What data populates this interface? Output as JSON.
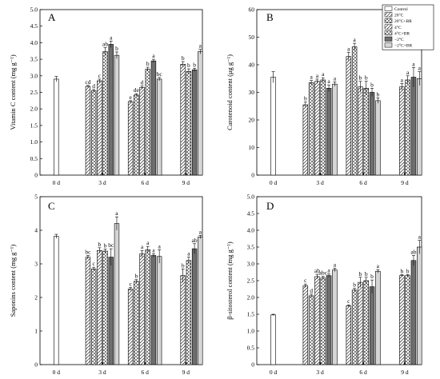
{
  "colors": {
    "dark": "#6e6e6e",
    "light": "#d6d6d6",
    "white": "#ffffff"
  },
  "legend": {
    "entries": [
      {
        "label": "Control",
        "pattern": "white"
      },
      {
        "label": "20°C",
        "pattern": "diag"
      },
      {
        "label": "20°C+BR",
        "pattern": "cross"
      },
      {
        "label": "4°C",
        "pattern": "diag"
      },
      {
        "label": "4°C+BR",
        "pattern": "cross"
      },
      {
        "label": "−2°C",
        "pattern": "dark"
      },
      {
        "label": "−2°C+BR",
        "pattern": "light"
      }
    ]
  },
  "chart_data": [
    {
      "type": "bar",
      "panel": "A",
      "ylabel": "Vitamin C content (mg g⁻¹)",
      "ylim": [
        0,
        5.0
      ],
      "yticks": [
        "0",
        "0.5",
        "1.0",
        "1.5",
        "2.0",
        "2.5",
        "3.0",
        "3.5",
        "4.0",
        "4.5",
        "5.0"
      ],
      "tickvals": [
        0,
        0.5,
        1.0,
        1.5,
        2.0,
        2.5,
        3.0,
        3.5,
        4.0,
        4.5,
        5.0
      ],
      "categories": [
        "0 d",
        "3 d",
        "6 d",
        "9 d"
      ],
      "control": {
        "value": 2.9,
        "err": 0.08
      },
      "groups": [
        {
          "cat": "3 d",
          "start": 1,
          "bars": [
            {
              "v": 2.68,
              "e": 0.03,
              "s": "cd"
            },
            {
              "v": 2.55,
              "e": 0.04,
              "s": "d"
            },
            {
              "v": 2.85,
              "e": 0.05,
              "s": "c"
            },
            {
              "v": 3.73,
              "e": 0.12,
              "s": "ab"
            },
            {
              "v": 3.95,
              "e": 0.1,
              "s": "a"
            },
            {
              "v": 3.62,
              "e": 0.1,
              "s": "b"
            }
          ]
        },
        {
          "cat": "6 d",
          "start": 1,
          "bars": [
            {
              "v": 2.22,
              "e": 0.03,
              "s": "e"
            },
            {
              "v": 2.42,
              "e": 0.04,
              "s": "de"
            },
            {
              "v": 2.65,
              "e": 0.04,
              "s": "d"
            },
            {
              "v": 3.2,
              "e": 0.06,
              "s": "b"
            },
            {
              "v": 3.45,
              "e": 0.05,
              "s": "a"
            },
            {
              "v": 2.9,
              "e": 0.05,
              "s": "bc"
            }
          ]
        },
        {
          "cat": "9 d",
          "start": 3,
          "bars": [
            {
              "v": 3.35,
              "e": 0.08,
              "s": "b"
            },
            {
              "v": 3.13,
              "e": 0.08,
              "s": "b"
            },
            {
              "v": 3.18,
              "e": 0.05,
              "s": "b"
            },
            {
              "v": 3.73,
              "e": 0.07,
              "s": "a"
            }
          ]
        }
      ]
    },
    {
      "type": "bar",
      "panel": "B",
      "ylabel": "Carotenoid content (μg g⁻¹)",
      "ylim": [
        0,
        60
      ],
      "yticks": [
        "0",
        "10",
        "20",
        "30",
        "40",
        "50",
        "60"
      ],
      "tickvals": [
        0,
        10,
        20,
        30,
        40,
        50,
        60
      ],
      "categories": [
        "0 d",
        "3 d",
        "6 d",
        "9 d"
      ],
      "control": {
        "value": 35.5,
        "err": 2.0
      },
      "groups": [
        {
          "cat": "3 d",
          "start": 1,
          "bars": [
            {
              "v": 25.5,
              "e": 1.0,
              "s": "b"
            },
            {
              "v": 33.5,
              "e": 0.8,
              "s": "a"
            },
            {
              "v": 34.0,
              "e": 0.8,
              "s": "a"
            },
            {
              "v": 34.5,
              "e": 0.8,
              "s": "a"
            },
            {
              "v": 31.5,
              "e": 1.2,
              "s": "a"
            },
            {
              "v": 33.0,
              "e": 0.8,
              "s": "a"
            }
          ]
        },
        {
          "cat": "6 d",
          "start": 1,
          "bars": [
            {
              "v": 43.0,
              "e": 1.5,
              "s": "a"
            },
            {
              "v": 46.5,
              "e": 1.3,
              "s": "a"
            },
            {
              "v": 32.0,
              "e": 2.0,
              "s": "b"
            },
            {
              "v": 31.5,
              "e": 2.5,
              "s": "b"
            },
            {
              "v": 30.0,
              "e": 1.5,
              "s": "b"
            },
            {
              "v": 27.0,
              "e": 1.0,
              "s": "b"
            }
          ]
        },
        {
          "cat": "9 d",
          "start": 3,
          "bars": [
            {
              "v": 32.0,
              "e": 1.2,
              "s": "a"
            },
            {
              "v": 34.5,
              "e": 1.5,
              "s": "a"
            },
            {
              "v": 35.5,
              "e": 3.5,
              "s": "a"
            },
            {
              "v": 35.0,
              "e": 2.5,
              "s": "a"
            }
          ]
        }
      ]
    },
    {
      "type": "bar",
      "panel": "C",
      "ylabel": "Saponins content (mg g⁻¹)",
      "ylim": [
        0,
        5
      ],
      "yticks": [
        "0",
        "1",
        "2",
        "3",
        "4",
        "5"
      ],
      "tickvals": [
        0,
        1,
        2,
        3,
        4,
        5
      ],
      "categories": [
        "0 d",
        "3 d",
        "6 d",
        "9 d"
      ],
      "control": {
        "value": 3.82,
        "err": 0.06
      },
      "groups": [
        {
          "cat": "3 d",
          "start": 1,
          "bars": [
            {
              "v": 3.2,
              "e": 0.05,
              "s": "bc"
            },
            {
              "v": 2.85,
              "e": 0.05,
              "s": "c"
            },
            {
              "v": 3.4,
              "e": 0.08,
              "s": "b"
            },
            {
              "v": 3.38,
              "e": 0.06,
              "s": "b"
            },
            {
              "v": 3.2,
              "e": 0.25,
              "s": "bc"
            },
            {
              "v": 4.2,
              "e": 0.2,
              "s": "a"
            }
          ]
        },
        {
          "cat": "6 d",
          "start": 1,
          "bars": [
            {
              "v": 2.25,
              "e": 0.05,
              "s": "c"
            },
            {
              "v": 2.48,
              "e": 0.05,
              "s": "b"
            },
            {
              "v": 3.3,
              "e": 0.1,
              "s": "a"
            },
            {
              "v": 3.42,
              "e": 0.1,
              "s": "a"
            },
            {
              "v": 3.25,
              "e": 0.05,
              "s": "a"
            },
            {
              "v": 3.22,
              "e": 0.2,
              "s": "a"
            }
          ]
        },
        {
          "cat": "9 d",
          "start": 3,
          "bars": [
            {
              "v": 2.65,
              "e": 0.2,
              "s": "b"
            },
            {
              "v": 3.1,
              "e": 0.1,
              "s": "a"
            },
            {
              "v": 3.45,
              "e": 0.15,
              "s": "ab"
            },
            {
              "v": 3.8,
              "e": 0.05,
              "s": "a"
            }
          ]
        }
      ]
    },
    {
      "type": "bar",
      "panel": "D",
      "ylabel": "β-sitosterol content (mg g⁻¹)",
      "ylim": [
        0,
        5.0
      ],
      "yticks": [
        "0",
        "0.5",
        "1.0",
        "1.5",
        "2.0",
        "2.5",
        "3.0",
        "3.5",
        "4.0",
        "4.5",
        "5.0"
      ],
      "tickvals": [
        0,
        0.5,
        1.0,
        1.5,
        2.0,
        2.5,
        3.0,
        3.5,
        4.0,
        4.5,
        5.0
      ],
      "categories": [
        "0 d",
        "3 d",
        "6 d",
        "9 d"
      ],
      "control": {
        "value": 1.48,
        "err": 0.02
      },
      "groups": [
        {
          "cat": "3 d",
          "start": 1,
          "bars": [
            {
              "v": 2.35,
              "e": 0.05,
              "s": "c"
            },
            {
              "v": 2.05,
              "e": 0.05,
              "s": "d"
            },
            {
              "v": 2.62,
              "e": 0.07,
              "s": "ab"
            },
            {
              "v": 2.58,
              "e": 0.05,
              "s": "abc"
            },
            {
              "v": 2.65,
              "e": 0.05,
              "s": "a"
            },
            {
              "v": 2.82,
              "e": 0.05,
              "s": "a"
            }
          ]
        },
        {
          "cat": "6 d",
          "start": 1,
          "bars": [
            {
              "v": 1.75,
              "e": 0.03,
              "s": "c"
            },
            {
              "v": 2.22,
              "e": 0.05,
              "s": "b"
            },
            {
              "v": 2.45,
              "e": 0.15,
              "s": "b"
            },
            {
              "v": 2.5,
              "e": 0.1,
              "s": "b"
            },
            {
              "v": 2.32,
              "e": 0.2,
              "s": "b"
            },
            {
              "v": 2.78,
              "e": 0.05,
              "s": "a"
            }
          ]
        },
        {
          "cat": "9 d",
          "start": 3,
          "bars": [
            {
              "v": 2.65,
              "e": 0.03,
              "s": "b"
            },
            {
              "v": 2.65,
              "e": 0.03,
              "s": "b"
            },
            {
              "v": 3.1,
              "e": 0.15,
              "s": "ab"
            },
            {
              "v": 3.5,
              "e": 0.2,
              "s": "a"
            }
          ]
        }
      ]
    }
  ]
}
